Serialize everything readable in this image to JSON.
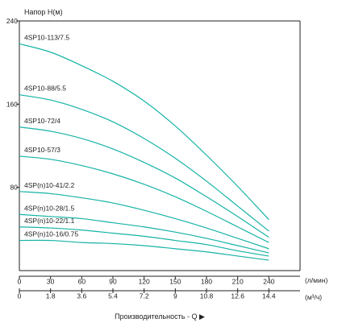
{
  "chart_data": {
    "type": "line",
    "ylabel": "Напор H(м)",
    "ylim": [
      0,
      240
    ],
    "yticks": [
      "240",
      "160",
      "80"
    ],
    "ytick_values": [
      240,
      160,
      80
    ],
    "x_axis_primary": {
      "label": "(л/мин)",
      "ticks": [
        "0",
        "30",
        "60",
        "90",
        "120",
        "150",
        "180",
        "210",
        "240"
      ],
      "tick_values": [
        0,
        30,
        60,
        90,
        120,
        150,
        180,
        210,
        240
      ]
    },
    "x_axis_secondary": {
      "label": "(м³/ч)",
      "ticks": [
        "0",
        "1.8",
        "3.6",
        "5.4",
        "7.2",
        "9",
        "10.8",
        "12.6",
        "14.4"
      ],
      "tick_values": [
        0,
        1.8,
        3.6,
        5.4,
        7.2,
        9,
        10.8,
        12.6,
        14.4
      ]
    },
    "xlabel": "Производительность - Q ▶",
    "xlim": [
      0,
      270
    ],
    "line_color": "#17b3a6",
    "grid": false,
    "x": [
      0,
      30,
      60,
      90,
      120,
      150,
      180,
      210,
      240
    ],
    "series": [
      {
        "name": "4SP10-113/7.5",
        "values": [
          218,
          210,
          197,
          182,
          163,
          139,
          111,
          81,
          49
        ]
      },
      {
        "name": "4SP10-88/5.5",
        "values": [
          169,
          164,
          155,
          143,
          127,
          108,
          86,
          62,
          38
        ]
      },
      {
        "name": "4SP10-72/4",
        "values": [
          138,
          134,
          127,
          117,
          104,
          89,
          71,
          52,
          32
        ]
      },
      {
        "name": "4SP10-57/3",
        "values": [
          110,
          107,
          101,
          93,
          83,
          71,
          57,
          42,
          27
        ]
      },
      {
        "name": "4SP(n)10-41/2.2",
        "values": [
          76,
          74,
          70,
          65,
          58,
          50,
          41,
          31,
          21
        ]
      },
      {
        "name": "4SP(n)10-28/1.5",
        "values": [
          54,
          52,
          50,
          46,
          42,
          37,
          31,
          24,
          17
        ]
      },
      {
        "name": "4SP(n)10-22/1.1",
        "values": [
          42,
          41,
          39,
          36,
          33,
          29,
          25,
          19,
          14
        ]
      },
      {
        "name": "4SP(n)10-16/0.75",
        "values": [
          29,
          29,
          27,
          26,
          24,
          21,
          18,
          14,
          10
        ]
      }
    ]
  }
}
